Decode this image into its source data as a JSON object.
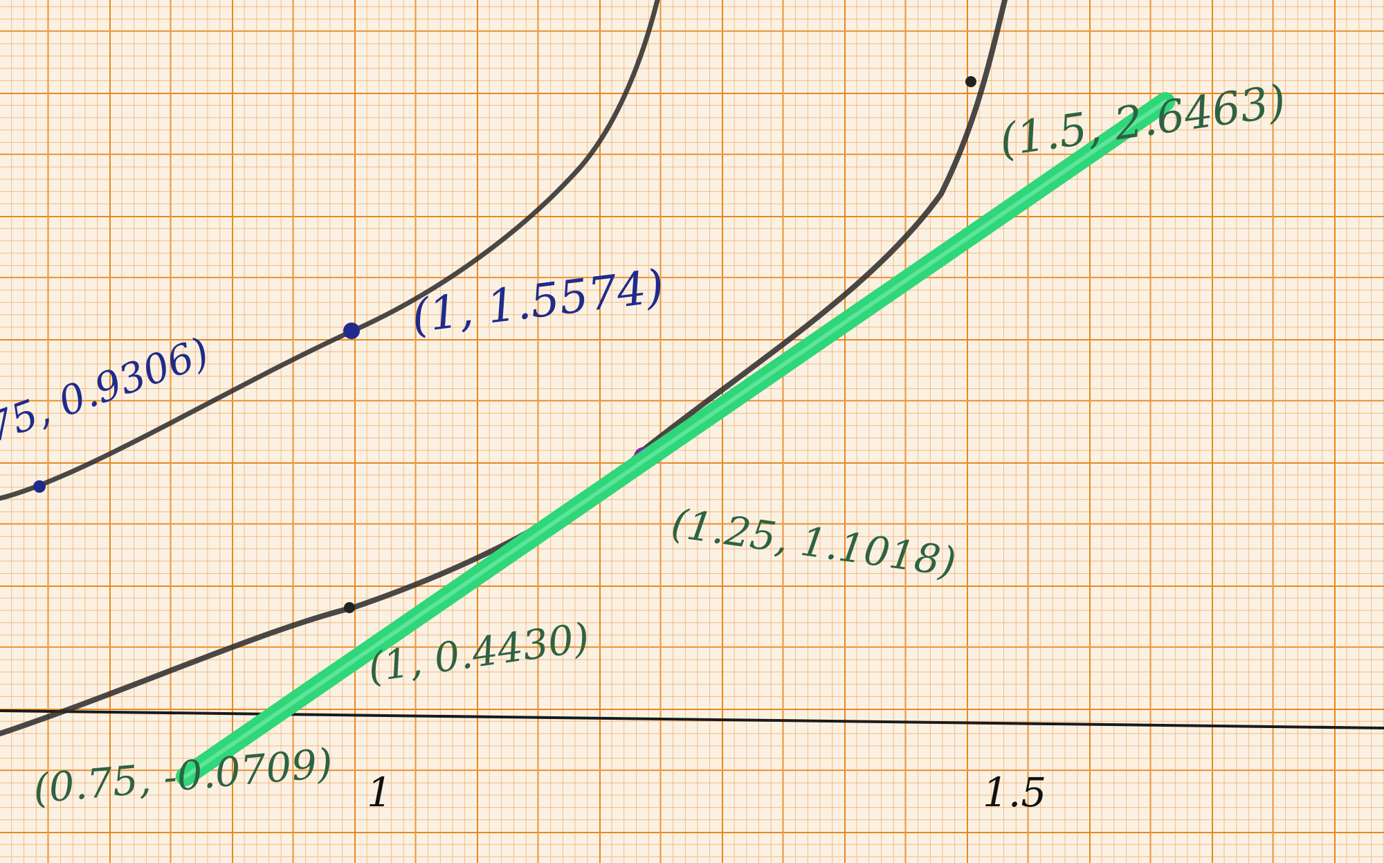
{
  "annotations": {
    "upper_curve": [
      "75, 0.9306)",
      "(1, 1.5574)"
    ],
    "lower_curve": [
      "(0.75, -0.0709)",
      "(1, 0.4430)",
      "(1.25, 1.1018)",
      "(1.5, 2.6463)"
    ]
  },
  "axis_labels": [
    "1",
    "1.5"
  ]
}
